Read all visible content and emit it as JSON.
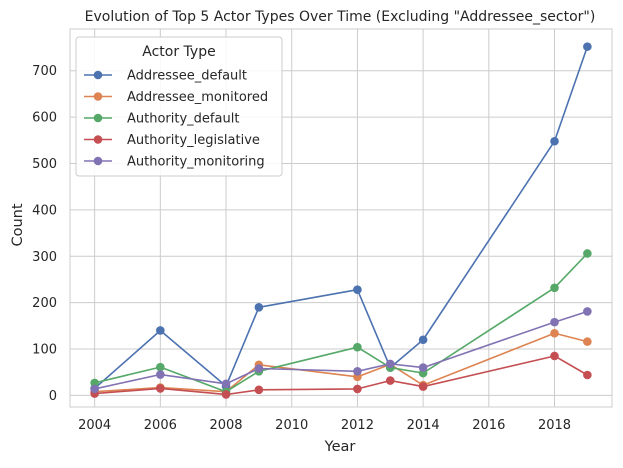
{
  "chart_data": {
    "type": "line",
    "title": "Evolution of Top 5 Actor Types Over Time (Excluding \"Addressee_sector\")",
    "xlabel": "Year",
    "ylabel": "Count",
    "xlim": [
      2003.25,
      2019.75
    ],
    "ylim": [
      -25,
      790
    ],
    "xticks": [
      2004,
      2006,
      2008,
      2010,
      2012,
      2014,
      2016,
      2018
    ],
    "yticks": [
      0,
      100,
      200,
      300,
      400,
      500,
      600,
      700
    ],
    "grid": true,
    "legend": {
      "title": "Actor Type",
      "placement": "top-left"
    },
    "series": [
      {
        "name": "Addressee_default",
        "color": "#4c72b0",
        "x": [
          2004,
          2006,
          2008,
          2009,
          2012,
          2013,
          2014,
          2018,
          2019
        ],
        "values": [
          15,
          140,
          20,
          190,
          228,
          60,
          120,
          548,
          752
        ]
      },
      {
        "name": "Addressee_monitored",
        "color": "#dd8452",
        "x": [
          2004,
          2006,
          2008,
          2009,
          2012,
          2013,
          2014,
          2018,
          2019
        ],
        "values": [
          8,
          17,
          8,
          66,
          40,
          67,
          22,
          134,
          116
        ]
      },
      {
        "name": "Authority_default",
        "color": "#55a868",
        "x": [
          2004,
          2006,
          2008,
          2009,
          2012,
          2013,
          2014,
          2018,
          2019
        ],
        "values": [
          27,
          61,
          8,
          52,
          104,
          60,
          48,
          232,
          306
        ]
      },
      {
        "name": "Authority_legislative",
        "color": "#c44e52",
        "x": [
          2004,
          2006,
          2008,
          2009,
          2012,
          2013,
          2014,
          2018,
          2019
        ],
        "values": [
          4,
          15,
          2,
          12,
          14,
          32,
          19,
          85,
          44
        ]
      },
      {
        "name": "Authority_monitoring",
        "color": "#8172b3",
        "x": [
          2004,
          2006,
          2008,
          2009,
          2012,
          2013,
          2014,
          2018,
          2019
        ],
        "values": [
          14,
          45,
          25,
          58,
          52,
          68,
          60,
          158,
          181
        ]
      }
    ]
  }
}
